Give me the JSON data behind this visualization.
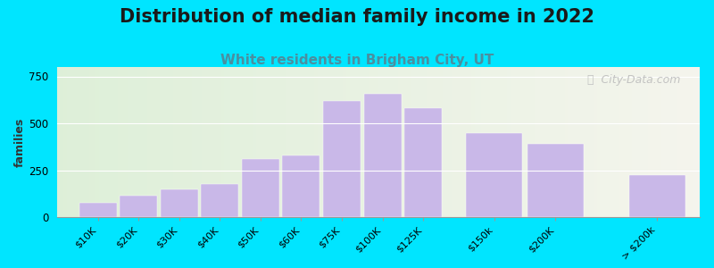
{
  "title": "Distribution of median family income in 2022",
  "subtitle": "White residents in Brigham City, UT",
  "ylabel": "families",
  "categories": [
    "$10K",
    "$20K",
    "$30K",
    "$40K",
    "$50K",
    "$60K",
    "$75K",
    "$100K",
    "$125K",
    "$150k",
    "$200K",
    "> $200k"
  ],
  "values": [
    75,
    115,
    150,
    175,
    310,
    330,
    620,
    655,
    580,
    450,
    390,
    225
  ],
  "bar_positions": [
    0,
    1,
    2,
    3,
    4,
    5,
    6,
    7,
    8,
    9.5,
    11,
    13.5
  ],
  "bar_widths": [
    1,
    1,
    1,
    1,
    1,
    1,
    1,
    1,
    1,
    1.5,
    1.5,
    1.5
  ],
  "bar_color": "#c9b8e8",
  "background_outer": "#00e5ff",
  "background_plot_left": "#deefd8",
  "background_plot_right": "#f0f0ea",
  "title_fontsize": 15,
  "subtitle_fontsize": 11,
  "subtitle_color": "#4a8fa0",
  "ylabel_fontsize": 9,
  "ylim": [
    0,
    800
  ],
  "yticks": [
    0,
    250,
    500,
    750
  ],
  "watermark_text": "ⓘ  City-Data.com",
  "watermark_color": "#bbbbbb"
}
